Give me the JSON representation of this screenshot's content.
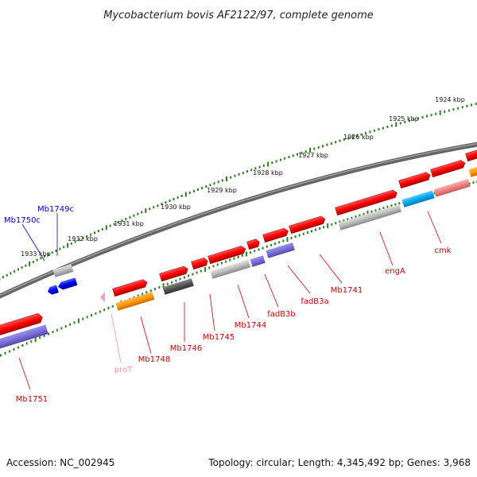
{
  "title": "Mycobacterium bovis AF2122/97, complete genome",
  "footer": {
    "accession": "Accession: NC_002945",
    "summary": "Topology: circular; Length: 4,345,492 bp; Genes: 3,968"
  },
  "ruler": [
    "1924 kbp",
    "1925 kbp",
    "1926 kbp",
    "1927 kbp",
    "1928 kbp",
    "1929 kbp",
    "1930 kbp",
    "1931 kbp",
    "1932 kbp",
    "1933 kbp"
  ],
  "genes": {
    "mb1749c": "Mb1749c",
    "mb1750c": "Mb1750c",
    "mb1751": "Mb1751",
    "prot": "proT",
    "mb1748": "Mb1748",
    "mb1746": "Mb1746",
    "mb1745": "Mb1745",
    "mb1744": "Mb1744",
    "fadb3b": "fadB3b",
    "fadb3a": "fadB3a",
    "mb1741": "Mb1741",
    "enga": "engA",
    "cmk": "cmk"
  },
  "colors": {
    "backbone": "#777777",
    "ruler_ticks": "#2e7d1e",
    "forward_gene": "#ff0000",
    "reverse_gene": "#0000ee",
    "rna_gene": "#ff99cc",
    "orange_feature": "#ff9900",
    "violet_feature": "#7a6fd6",
    "grey_feature": "#bbbbbb",
    "dark_feature": "#555555",
    "cyan_feature": "#00aaee",
    "forward_label": "#cc0000",
    "reverse_label": "#0000cc",
    "rna_label": "#ff88bb"
  }
}
